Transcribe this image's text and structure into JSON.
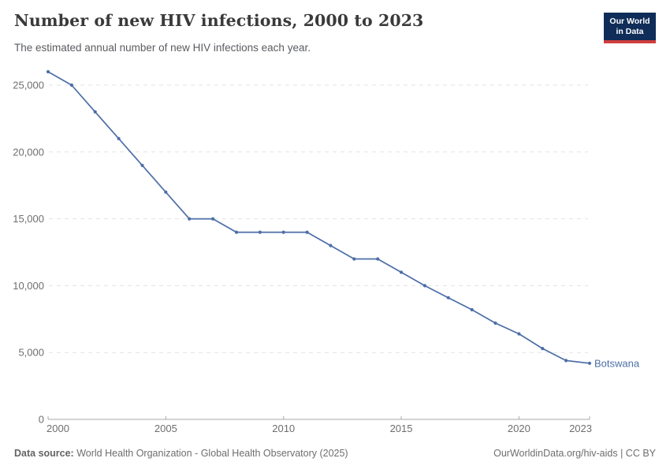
{
  "header": {
    "title": "Number of new HIV infections, 2000 to 2023",
    "subtitle": "The estimated annual number of new HIV infections each year.",
    "logo": {
      "line1": "Our World",
      "line2": "in Data",
      "bg_color": "#0f2d58",
      "bar_color": "#d13d3d"
    }
  },
  "chart_data": {
    "type": "line",
    "title": "Number of new HIV infections, 2000 to 2023",
    "x": [
      2000,
      2001,
      2002,
      2003,
      2004,
      2005,
      2006,
      2007,
      2008,
      2009,
      2010,
      2011,
      2012,
      2013,
      2014,
      2015,
      2016,
      2017,
      2018,
      2019,
      2020,
      2021,
      2022,
      2023
    ],
    "series": [
      {
        "name": "Botswana",
        "color": "#4c6ea7",
        "values": [
          26000,
          25000,
          23000,
          21000,
          19000,
          17000,
          15000,
          15000,
          14000,
          14000,
          14000,
          14000,
          13000,
          12000,
          12000,
          11000,
          10000,
          9100,
          8200,
          7200,
          6400,
          5300,
          4400,
          4200
        ]
      }
    ],
    "xlabel": "",
    "ylabel": "",
    "ylim": [
      0,
      26000
    ],
    "yticks": [
      0,
      5000,
      10000,
      15000,
      20000,
      25000
    ],
    "ytick_labels": [
      "0",
      "5,000",
      "10,000",
      "15,000",
      "20,000",
      "25,000"
    ],
    "xticks": [
      2000,
      2005,
      2010,
      2015,
      2020,
      2023
    ],
    "grid": "horizontal-dashed",
    "legend_position": "end-of-line-label",
    "colors": {
      "gridline": "#e3e3e3",
      "axis_line": "#a9a9a9",
      "tick_text": "#6e6e6e"
    }
  },
  "footer": {
    "source_label": "Data source:",
    "source_text": "World Health Organization - Global Health Observatory (2025)",
    "right_text": "OurWorldinData.org/hiv-aids | CC BY"
  }
}
